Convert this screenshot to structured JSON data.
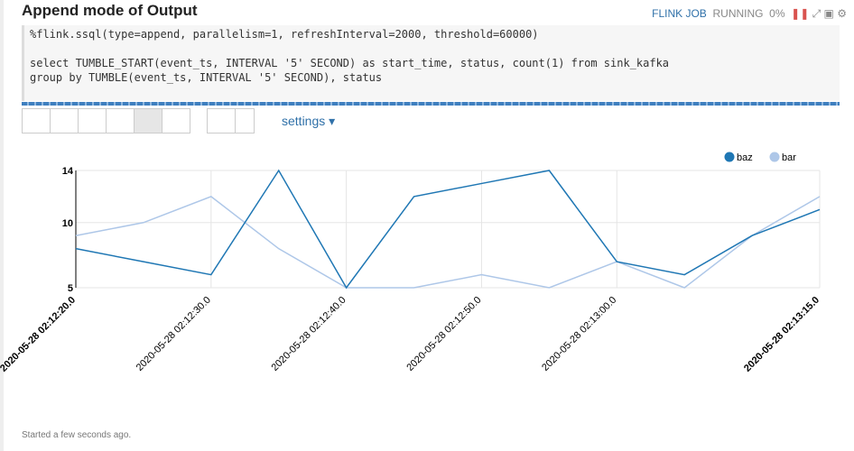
{
  "header": {
    "title": "Append mode of Output",
    "job": "FLINK JOB",
    "status": "RUNNING",
    "progress": "0%"
  },
  "code": [
    "%flink.ssql(type=append, parallelism=1, refreshInterval=2000, threshold=60000)",
    "",
    "select TUMBLE_START(event_ts, INTERVAL '5' SECOND) as start_time, status, count(1) from sink_kafka",
    "group by TUMBLE(event_ts, INTERVAL '5' SECOND), status"
  ],
  "toolbar": {
    "settings": "settings"
  },
  "chart_data": {
    "type": "line",
    "categories": [
      "2020-05-28 02:12:20.0",
      null,
      "2020-05-28 02:12:30.0",
      null,
      "2020-05-28 02:12:40.0",
      null,
      "2020-05-28 02:12:50.0",
      null,
      "2020-05-28 02:13:00.0",
      null,
      null,
      "2020-05-28 02:13:15.0"
    ],
    "series": [
      {
        "name": "baz",
        "color": "#1f77b4",
        "values": [
          8,
          7,
          6,
          14,
          5,
          12,
          13,
          14,
          7,
          6,
          9,
          11
        ]
      },
      {
        "name": "bar",
        "color": "#aec7e8",
        "values": [
          9,
          10,
          12,
          8,
          5,
          5,
          6,
          5,
          7,
          5,
          9,
          12
        ]
      }
    ],
    "ylim": [
      5,
      14
    ],
    "yticks": [
      5,
      10,
      14
    ],
    "grid": true,
    "legend": "top-right"
  },
  "footer": "Started a few seconds ago."
}
